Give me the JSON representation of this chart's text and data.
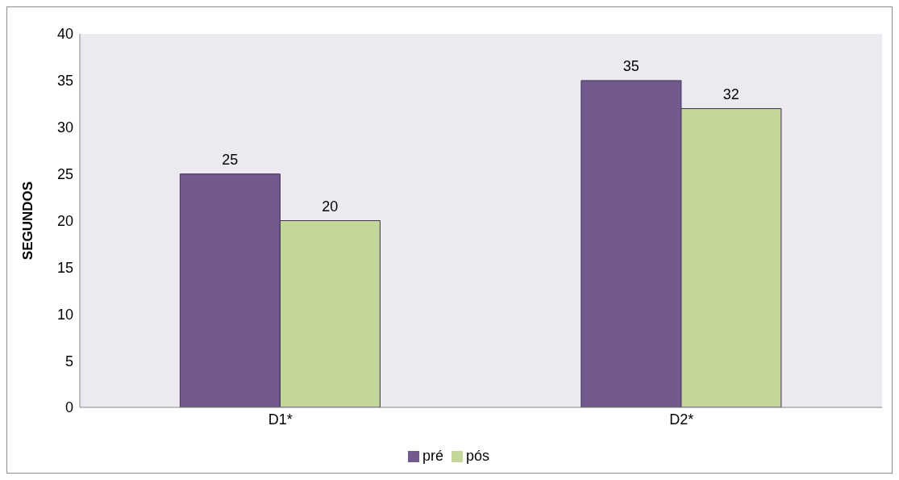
{
  "chart_data": {
    "type": "bar",
    "ylabel": "SEGUNDOS",
    "categories": [
      "D1*",
      "D2*"
    ],
    "series": [
      {
        "name": "pré",
        "color": "#725a8f",
        "values": [
          25,
          35
        ]
      },
      {
        "name": "pós",
        "color": "#c4d79b",
        "values": [
          20,
          32
        ]
      }
    ],
    "ylim": [
      0,
      40
    ],
    "yticks": [
      0,
      5,
      10,
      15,
      20,
      25,
      30,
      35,
      40
    ],
    "grid": false,
    "legend": "bottom",
    "data_labels": true
  }
}
